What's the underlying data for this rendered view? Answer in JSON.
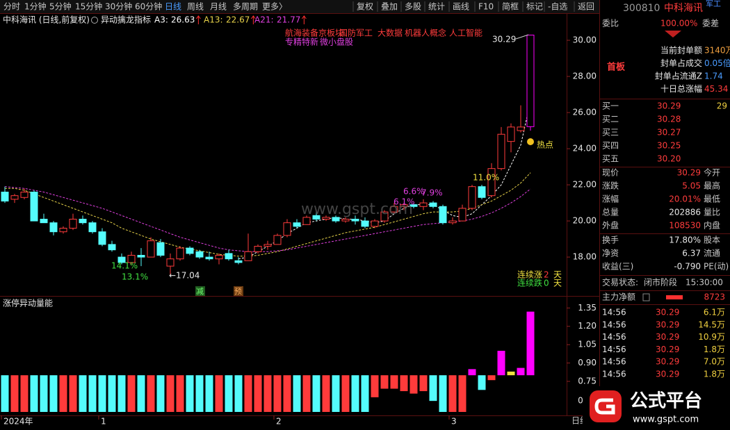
{
  "toolbar": {
    "left": [
      "分时",
      "1分钟",
      "5分钟",
      "15分钟",
      "30分钟",
      "60分钟",
      "日线",
      "周线",
      "月线",
      "多周期",
      "更多〉"
    ],
    "right": [
      "复权",
      "叠加",
      "多股",
      "统计",
      "画线",
      "F10",
      "简框",
      "标记",
      "-自选",
      "返回"
    ]
  },
  "quote": {
    "code": "300810",
    "name": "中科海讯",
    "tag": "军工",
    "weibi_label": "委比",
    "weibi": "100.00%",
    "weicha_label": "委差",
    "board": "首板",
    "metrics": [
      [
        "当前封单额",
        "3140万"
      ],
      [
        "封单占成交",
        "0.05倍"
      ],
      [
        "封单占流通Z",
        "1.74"
      ],
      [
        "十日总涨幅",
        "45.34"
      ]
    ],
    "bids": [
      [
        "买一",
        "30.29",
        "29"
      ],
      [
        "买二",
        "30.28"
      ],
      [
        "买三",
        "30.27"
      ],
      [
        "买四",
        "30.25"
      ],
      [
        "买五",
        "30.20"
      ]
    ],
    "stats": [
      [
        "现价",
        "30.29",
        "今开"
      ],
      [
        "涨跌",
        "5.05",
        "最高"
      ],
      [
        "涨幅",
        "20.01%",
        "最低"
      ],
      [
        "总量",
        "202886",
        "量比"
      ],
      [
        "外盘",
        "108530",
        "内盘"
      ]
    ],
    "stats2": [
      [
        "换手",
        "17.80%",
        "股本"
      ],
      [
        "净资",
        "6.37",
        "流通"
      ],
      [
        "收益(三)",
        "-0.790",
        "PE(动)"
      ]
    ],
    "status_label": "交易状态:",
    "status": "闭市阶段",
    "time": "15:30:00",
    "flow_label": "主力净额",
    "flow": "8723",
    "ticks": [
      [
        "14:56",
        "30.29",
        "6.1万"
      ],
      [
        "14:56",
        "30.29",
        "14.5万"
      ],
      [
        "14:56",
        "30.29",
        "10.9万"
      ],
      [
        "14:56",
        "30.29",
        "1.8万"
      ],
      [
        "14:56",
        "30.29",
        "7.0万"
      ],
      [
        "14:56",
        "30.29",
        "1.8万"
      ]
    ]
  },
  "logo": {
    "name": "公式平台",
    "url": "www.gspt.com"
  },
  "chart_data": [
    {
      "type": "candlestick",
      "title": "中科海讯 (日线,前复权)",
      "indicator": "异动擒龙指标",
      "open": [
        21.6,
        21.2,
        21.3,
        21.6,
        20.1,
        19.9,
        19.4,
        19.6,
        20.1,
        19.9,
        19.4,
        18.7,
        18.0,
        17.7,
        18.1,
        18.0,
        18.8,
        17.5,
        17.9,
        18.5,
        18.3,
        18.0,
        17.9,
        18.2,
        17.8,
        17.8,
        18.3,
        18.6,
        18.7,
        19.2,
        19.9,
        19.8,
        20.3,
        20.1,
        20.2,
        20.0,
        20.1,
        20.0,
        19.7,
        20.0,
        20.5,
        20.8,
        20.9,
        20.8,
        21.0,
        20.8,
        19.9,
        20.0,
        20.7,
        21.9,
        21.4,
        22.9,
        24.4,
        25.0,
        25.22
      ],
      "high": [
        21.9,
        21.5,
        21.8,
        21.7,
        20.4,
        20.0,
        19.7,
        20.4,
        20.3,
        20.0,
        19.6,
        18.9,
        18.2,
        18.3,
        18.5,
        19.1,
        19.0,
        18.2,
        18.6,
        18.6,
        18.4,
        18.3,
        18.2,
        18.4,
        18.0,
        19.3,
        18.7,
        18.9,
        19.3,
        20.1,
        20.1,
        20.3,
        20.5,
        20.3,
        20.3,
        20.2,
        20.3,
        20.2,
        20.1,
        20.6,
        21.0,
        21.0,
        21.0,
        21.2,
        21.1,
        20.9,
        20.2,
        20.9,
        22.0,
        22.0,
        23.2,
        25.2,
        25.4,
        26.4,
        30.29
      ],
      "low": [
        21.0,
        21.0,
        21.2,
        20.0,
        19.9,
        19.2,
        19.3,
        19.5,
        19.8,
        19.3,
        18.6,
        18.3,
        17.6,
        17.6,
        17.5,
        18.0,
        18.0,
        17.04,
        17.8,
        18.1,
        17.9,
        17.8,
        17.6,
        17.8,
        17.6,
        17.8,
        18.2,
        18.4,
        18.7,
        19.1,
        19.6,
        19.8,
        20.0,
        20.0,
        19.9,
        19.9,
        19.8,
        19.6,
        19.6,
        19.9,
        20.4,
        20.6,
        20.7,
        20.6,
        20.7,
        19.8,
        19.8,
        20.0,
        20.6,
        21.2,
        21.3,
        22.8,
        23.8,
        24.9,
        25.0
      ],
      "close": [
        21.1,
        21.4,
        21.6,
        20.0,
        19.9,
        19.4,
        19.6,
        20.1,
        19.9,
        19.4,
        18.7,
        18.4,
        17.7,
        18.1,
        18.0,
        18.9,
        18.1,
        17.9,
        18.5,
        18.2,
        18.0,
        17.9,
        18.1,
        17.9,
        17.7,
        18.3,
        18.6,
        18.7,
        19.2,
        19.9,
        19.7,
        20.2,
        20.1,
        20.2,
        20.0,
        20.1,
        20.0,
        19.7,
        20.0,
        20.5,
        20.8,
        20.9,
        20.8,
        21.0,
        20.8,
        19.9,
        20.0,
        20.7,
        21.9,
        21.3,
        22.9,
        24.8,
        25.2,
        25.2,
        30.29
      ],
      "colors": [
        "#54fcfc",
        "#ff3b3b",
        "#ff3b3b",
        "#54fcfc",
        "#54fcfc",
        "#54fcfc",
        "#ff3b3b",
        "#ff3b3b",
        "#54fcfc",
        "#54fcfc",
        "#54fcfc",
        "#54fcfc",
        "#54fcfc",
        "#ff3b3b",
        "#54fcfc",
        "#ff3b3b",
        "#54fcfc",
        "#ff3b3b",
        "#ff3b3b",
        "#54fcfc",
        "#54fcfc",
        "#54fcfc",
        "#ff3b3b",
        "#54fcfc",
        "#54fcfc",
        "#ff3b3b",
        "#ff3b3b",
        "#ff3b3b",
        "#ff3b3b",
        "#ff3b3b",
        "#54fcfc",
        "#ff3b3b",
        "#54fcfc",
        "#ff3b3b",
        "#54fcfc",
        "#ff3b3b",
        "#54fcfc",
        "#54fcfc",
        "#ff3b3b",
        "#ff3b3b",
        "#ff3b3b",
        "#ff3b3b",
        "#54fcfc",
        "#ff3b3b",
        "#54fcfc",
        "#54fcfc",
        "#ff3b3b",
        "#ff3b3b",
        "#ff3b3b",
        "#54fcfc",
        "#ff3b3b",
        "#ff3b3b",
        "#ff3b3b",
        "#ff3b3b",
        "#ff00ff"
      ],
      "ylim": [
        15.85,
        31.5
      ],
      "yticks": [
        {
          "value": 18,
          "label": "18.00"
        },
        {
          "value": 20,
          "label": "20.00"
        },
        {
          "value": 22,
          "label": "22.00"
        },
        {
          "value": 24,
          "label": "24.00"
        },
        {
          "value": 26,
          "label": "26.00"
        },
        {
          "value": 28,
          "label": "28.00"
        },
        {
          "value": 30,
          "label": "30.00"
        }
      ],
      "series": [
        {
          "name": "A3:",
          "color": "#ffffff",
          "values": [
            null,
            null,
            null,
            null,
            null,
            null,
            null,
            null,
            null,
            null,
            null,
            null,
            null,
            null,
            null,
            null,
            null,
            null,
            null,
            null,
            null,
            null,
            null,
            null,
            17.9,
            18.0,
            18.3,
            18.6,
            18.9,
            19.3,
            19.6,
            19.9,
            20.0,
            20.1,
            20.2,
            20.1,
            20.1,
            20.0,
            19.9,
            20.0,
            20.4,
            20.7,
            20.9,
            20.9,
            20.9,
            20.6,
            20.3,
            20.2,
            20.4,
            20.9,
            21.4,
            22.0,
            23.1,
            24.2,
            26.63
          ]
        },
        {
          "name": "A13:",
          "color": "#e8d34a",
          "values": [
            21.8,
            21.8,
            21.7,
            21.5,
            21.3,
            21.1,
            20.9,
            20.7,
            20.5,
            20.3,
            20.1,
            19.9,
            19.6,
            19.4,
            19.2,
            19.0,
            18.85,
            18.7,
            18.55,
            18.45,
            18.35,
            18.25,
            18.15,
            18.1,
            18.05,
            18.05,
            18.1,
            18.2,
            18.3,
            18.45,
            18.6,
            18.75,
            18.9,
            19.05,
            19.2,
            19.35,
            19.45,
            19.55,
            19.65,
            19.8,
            19.95,
            20.1,
            20.25,
            20.4,
            20.5,
            20.5,
            20.5,
            20.55,
            20.7,
            20.9,
            21.1,
            21.4,
            21.7,
            22.1,
            22.67
          ]
        },
        {
          "name": "A21:",
          "color": "#e040e0",
          "values": [
            21.9,
            21.85,
            21.8,
            21.7,
            21.6,
            21.45,
            21.3,
            21.15,
            21.0,
            20.85,
            20.7,
            20.5,
            20.3,
            20.1,
            19.9,
            19.7,
            19.5,
            19.3,
            19.1,
            18.95,
            18.8,
            18.65,
            18.5,
            18.4,
            18.35,
            18.3,
            18.3,
            18.3,
            18.35,
            18.4,
            18.5,
            18.6,
            18.7,
            18.8,
            18.9,
            19.0,
            19.1,
            19.2,
            19.3,
            19.4,
            19.5,
            19.6,
            19.7,
            19.8,
            19.85,
            19.9,
            19.95,
            20.0,
            20.1,
            20.25,
            20.45,
            20.7,
            21.0,
            21.35,
            21.77
          ]
        }
      ],
      "annotations": [
        "30.29",
        "热点",
        "14.1%",
        "13.1%",
        "←17.04",
        "6.1%",
        "6.6%",
        "7.9%",
        "11.0%"
      ],
      "concepts": [
        "航海装备",
        "京板块",
        "国防军工",
        "大数据",
        "机器人概念",
        "人工智能"
      ],
      "concepts2": [
        "专精特新",
        "微小盘股"
      ],
      "streak": [
        "连续涨",
        "2",
        "天",
        "连续跌",
        "0",
        "天"
      ],
      "signals": [
        "减",
        "预"
      ],
      "watermark": "www.gspt.com"
    },
    {
      "type": "range_bar",
      "title": "涨停异动量能",
      "categories": [
        "2024年",
        null,
        null,
        null,
        null,
        null,
        null,
        null,
        null,
        null,
        "1",
        null,
        null,
        null,
        null,
        null,
        null,
        null,
        null,
        null,
        null,
        null,
        null,
        null,
        null,
        null,
        null,
        null,
        "2",
        null,
        null,
        null,
        null,
        null,
        null,
        null,
        null,
        null,
        null,
        null,
        null,
        null,
        null,
        null,
        null,
        null,
        "3",
        null,
        null,
        null,
        null,
        null,
        null,
        null,
        null
      ],
      "low": [
        0.5,
        0.5,
        0.5,
        0.5,
        0.5,
        0.5,
        0.5,
        0.5,
        0.5,
        0.5,
        0.5,
        0.5,
        0.5,
        0.5,
        0.5,
        0.5,
        0.5,
        0.5,
        0.5,
        0.5,
        0.5,
        0.5,
        0.5,
        0.5,
        0.5,
        0.5,
        0.5,
        0.5,
        0.5,
        0.5,
        0.5,
        0.5,
        0.5,
        0.5,
        0.5,
        0.5,
        0.5,
        0.5,
        0.62,
        0.69,
        0.69,
        0.67,
        0.65,
        0.67,
        0.59,
        0.5,
        0.5,
        0.5,
        0.8,
        0.68,
        0.76,
        0.8,
        0.8,
        0.8,
        0.8
      ],
      "high": [
        0.8,
        0.8,
        0.8,
        0.8,
        0.8,
        0.8,
        0.8,
        0.8,
        0.8,
        0.8,
        0.8,
        0.8,
        0.8,
        0.8,
        0.8,
        0.8,
        0.8,
        0.8,
        0.8,
        0.8,
        0.8,
        0.8,
        0.8,
        0.8,
        0.8,
        0.8,
        0.8,
        0.8,
        0.8,
        0.8,
        0.8,
        0.8,
        0.8,
        0.8,
        0.8,
        0.8,
        0.8,
        0.8,
        0.8,
        0.8,
        0.8,
        0.8,
        0.8,
        0.8,
        0.8,
        0.8,
        0.8,
        0.8,
        0.85,
        0.8,
        0.8,
        1.0,
        0.83,
        0.86,
        1.32
      ],
      "colors": [
        "#54fcfc",
        "#ff3b3b",
        "#ff3b3b",
        "#54fcfc",
        "#54fcfc",
        "#54fcfc",
        "#ff3b3b",
        "#ff3b3b",
        "#54fcfc",
        "#54fcfc",
        "#54fcfc",
        "#54fcfc",
        "#54fcfc",
        "#ff3b3b",
        "#54fcfc",
        "#ff3b3b",
        "#54fcfc",
        "#ff3b3b",
        "#ff3b3b",
        "#54fcfc",
        "#54fcfc",
        "#54fcfc",
        "#ff3b3b",
        "#54fcfc",
        "#54fcfc",
        "#ff3b3b",
        "#ff3b3b",
        "#ff3b3b",
        "#ff3b3b",
        "#ff3b3b",
        "#54fcfc",
        "#ff3b3b",
        "#54fcfc",
        "#ff3b3b",
        "#54fcfc",
        "#ff3b3b",
        "#54fcfc",
        "#54fcfc",
        "#ff3b3b",
        "#ff3b3b",
        "#ff3b3b",
        "#ff3b3b",
        "#ff3b3b",
        "#ff3b3b",
        "#54fcfc",
        "#54fcfc",
        "#ff3b3b",
        "#ff3b3b",
        "#ff00ff",
        "#54fcfc",
        "#ff3b3b",
        "#ff00ff",
        "#f0e040",
        "#ff00ff",
        "#ff00ff"
      ],
      "ylim": [
        0.5,
        1.42
      ],
      "yticks": [
        0.75,
        {
          "value": 0.9,
          "label": "0.90"
        },
        1.05,
        {
          "value": 1.2,
          "label": "1.20"
        },
        1.35
      ],
      "extra_axis_label": "0",
      "period": "日线"
    }
  ]
}
